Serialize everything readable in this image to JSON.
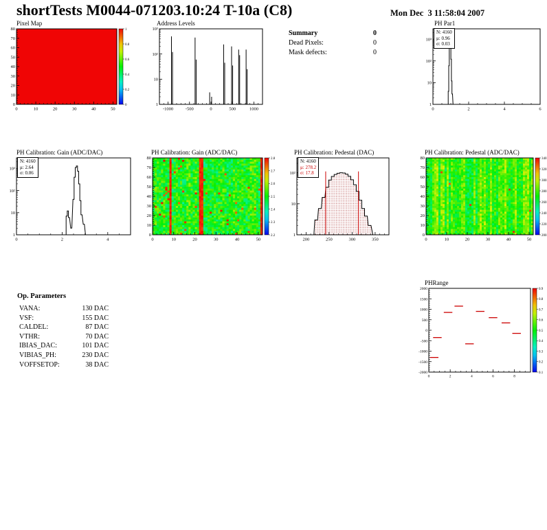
{
  "header": {
    "title": "shortTests M0044-071203.10:24 T-10a (C8)",
    "datetime": "Mon Dec  3 11:58:04 2007"
  },
  "summary": {
    "title": "Summary",
    "value": "0",
    "rows": [
      {
        "label": "Dead Pixels:",
        "value": "0"
      },
      {
        "label": "Mask defects:",
        "value": "0"
      }
    ]
  },
  "op_parameters": {
    "title": "Op. Parameters",
    "rows": [
      {
        "label": "VANA:",
        "value": "130 DAC"
      },
      {
        "label": "VSF:",
        "value": "155 DAC"
      },
      {
        "label": "CALDEL:",
        "value": "87 DAC"
      },
      {
        "label": "VTHR:",
        "value": "70 DAC"
      },
      {
        "label": "IBIAS_DAC:",
        "value": "101 DAC"
      },
      {
        "label": "VIBIAS_PH:",
        "value": "230 DAC"
      },
      {
        "label": "VOFFSETOP:",
        "value": "38 DAC"
      }
    ]
  },
  "colors": {
    "accent_red": "#cc0000",
    "hist_line": "#000000"
  },
  "chart_data": [
    {
      "id": "pixel-map",
      "type": "heatmap",
      "title": "Pixel Map",
      "x": {
        "min": 0,
        "max": 52,
        "ticks": [
          0,
          10,
          20,
          30,
          40,
          50
        ],
        "minor": 2
      },
      "y": {
        "type": "linear",
        "min": 0,
        "max": 80,
        "ticks": [
          0,
          10,
          20,
          30,
          40,
          50,
          60,
          70,
          80
        ],
        "minor": 2
      },
      "heat": {
        "mode": "uniform",
        "value": 1
      },
      "colorbar": {
        "labels": [
          "1",
          "0.8",
          "0.6",
          "0.4",
          "0.2",
          "0"
        ]
      }
    },
    {
      "id": "address-levels",
      "type": "spikes",
      "title": "Address Levels",
      "x": {
        "min": -1200,
        "max": 1200,
        "ticks": [
          -1000,
          -500,
          0,
          500,
          1000
        ],
        "minor": 100
      },
      "y": {
        "type": "log",
        "min": 1,
        "max": 1000,
        "labels": [
          {
            "v": 1,
            "t": "1"
          },
          {
            "v": 10,
            "t": "10"
          },
          {
            "v": 100,
            "t": "10²"
          },
          {
            "v": 1000,
            "t": "10³"
          }
        ]
      },
      "spikes": [
        [
          -920,
          500
        ],
        [
          -895,
          120
        ],
        [
          -370,
          450
        ],
        [
          -345,
          60
        ],
        [
          -30,
          3
        ],
        [
          15,
          2
        ],
        [
          295,
          240
        ],
        [
          320,
          45
        ],
        [
          480,
          200
        ],
        [
          505,
          35
        ],
        [
          645,
          150
        ],
        [
          668,
          90
        ],
        [
          818,
          150
        ],
        [
          842,
          25
        ]
      ]
    },
    {
      "id": "ph-par1",
      "type": "hist",
      "title": "PH Par1",
      "stats": {
        "lines": [
          {
            "text": "N: 4160",
            "color": "#000000"
          },
          {
            "text": "μ: 0.96",
            "color": "#000000"
          },
          {
            "text": "σ: 0.03",
            "color": "#000000"
          }
        ]
      },
      "x": {
        "min": 0,
        "max": 6,
        "ticks": [
          0,
          2,
          4,
          6
        ],
        "minor": 0.5
      },
      "y": {
        "type": "log",
        "min": 1,
        "max": 3000,
        "labels": [
          {
            "v": 1,
            "t": "1"
          },
          {
            "v": 10,
            "t": "10"
          },
          {
            "v": 100,
            "t": "10²"
          },
          {
            "v": 1000,
            "t": "10³"
          }
        ]
      },
      "bin_width": 0.03,
      "points": [
        [
          0.84,
          1
        ],
        [
          0.87,
          4
        ],
        [
          0.9,
          60
        ],
        [
          0.93,
          700
        ],
        [
          0.96,
          2200
        ],
        [
          0.99,
          900
        ],
        [
          1.02,
          120
        ],
        [
          1.05,
          12
        ],
        [
          1.08,
          3
        ],
        [
          1.14,
          1
        ]
      ]
    },
    {
      "id": "gain-hist",
      "type": "hist",
      "title": "PH Calibration: Gain (ADC/DAC)",
      "stats": {
        "lines": [
          {
            "text": "N: 4160",
            "color": "#000000"
          },
          {
            "text": "μ: 2.64",
            "color": "#000000"
          },
          {
            "text": "σ: 0.06",
            "color": "#000000"
          }
        ]
      },
      "x": {
        "min": 0,
        "max": 5,
        "ticks": [
          0,
          2,
          4
        ],
        "minor": 0.5
      },
      "y": {
        "type": "log",
        "min": 1,
        "max": 3000,
        "labels": [
          {
            "v": 1,
            "t": "1"
          },
          {
            "v": 10,
            "t": "10"
          },
          {
            "v": 100,
            "t": "10²"
          },
          {
            "v": 1000,
            "t": "10³"
          }
        ]
      },
      "bin_width": 0.05,
      "points": [
        [
          2.15,
          1
        ],
        [
          2.2,
          7
        ],
        [
          2.25,
          12
        ],
        [
          2.3,
          6
        ],
        [
          2.4,
          2
        ],
        [
          2.5,
          40
        ],
        [
          2.55,
          400
        ],
        [
          2.6,
          1100
        ],
        [
          2.65,
          1300
        ],
        [
          2.7,
          750
        ],
        [
          2.75,
          200
        ],
        [
          2.8,
          35
        ],
        [
          2.85,
          8
        ],
        [
          2.95,
          3
        ],
        [
          3.05,
          1
        ]
      ]
    },
    {
      "id": "gain-map",
      "type": "heatmap",
      "title": "PH Calibration: Gain (ADC/DAC)",
      "x": {
        "min": 0,
        "max": 52,
        "ticks": [
          0,
          10,
          20,
          30,
          40,
          50
        ],
        "minor": 2
      },
      "y": {
        "type": "linear",
        "min": 0,
        "max": 80,
        "ticks": [
          0,
          10,
          20,
          30,
          40,
          50,
          60,
          70,
          80
        ],
        "minor": 2
      },
      "heat": {
        "mode": "noise",
        "seed": 11,
        "base": 0.5,
        "jitter": 0.13,
        "col_wave": 0.05,
        "red_cols": [
          8,
          22,
          23,
          51
        ],
        "hot_fraction": 0.02
      },
      "colorbar": {
        "labels": [
          "2.8",
          "2.7",
          "2.6",
          "2.5",
          "2.4",
          "2.3",
          "2.2"
        ]
      }
    },
    {
      "id": "pedestal-hist",
      "type": "hist",
      "title": "PH Calibration: Pedestal (DAC)",
      "stats": {
        "lines": [
          {
            "text": "N: 4160",
            "color": "#000000"
          },
          {
            "text": "μ: 278.2",
            "color": "#cc0000"
          },
          {
            "text": "σ: 17.8",
            "color": "#cc0000"
          }
        ]
      },
      "x": {
        "min": 180,
        "max": 380,
        "ticks": [
          200,
          250,
          300,
          350
        ],
        "minor": 10
      },
      "y": {
        "type": "log",
        "min": 1,
        "max": 300,
        "labels": [
          {
            "v": 1,
            "t": "1"
          },
          {
            "v": 10,
            "t": "10"
          },
          {
            "v": 100,
            "t": "10²"
          }
        ]
      },
      "bin_width": 6,
      "fill": "dots",
      "vlines": [
        {
          "x": 242.6,
          "h": 110,
          "color": "#cc0000"
        },
        {
          "x": 313.8,
          "h": 110,
          "color": "#cc0000"
        }
      ],
      "points": [
        [
          206,
          1
        ],
        [
          214,
          1
        ],
        [
          222,
          3
        ],
        [
          230,
          7
        ],
        [
          238,
          16
        ],
        [
          246,
          34
        ],
        [
          252,
          58
        ],
        [
          258,
          76
        ],
        [
          264,
          88
        ],
        [
          270,
          96
        ],
        [
          276,
          100
        ],
        [
          282,
          98
        ],
        [
          288,
          90
        ],
        [
          294,
          77
        ],
        [
          300,
          59
        ],
        [
          306,
          41
        ],
        [
          312,
          25
        ],
        [
          318,
          13
        ],
        [
          324,
          7
        ],
        [
          330,
          4
        ],
        [
          338,
          2
        ],
        [
          348,
          1
        ]
      ]
    },
    {
      "id": "pedestal-map",
      "type": "heatmap",
      "title": "PH Calibration: Pedestal (ADC/DAC)",
      "x": {
        "min": 0,
        "max": 52,
        "ticks": [
          0,
          10,
          20,
          30,
          40,
          50
        ],
        "minor": 2
      },
      "y": {
        "type": "linear",
        "min": 0,
        "max": 80,
        "ticks": [
          0,
          10,
          20,
          30,
          40,
          50,
          60,
          70,
          80
        ],
        "minor": 2
      },
      "heat": {
        "mode": "noise",
        "seed": 23,
        "base": 0.55,
        "jitter": 0.09,
        "col_wave": 0.1,
        "red_cols": [],
        "hot_fraction": 0.004
      },
      "colorbar": {
        "labels": [
          "340",
          "320",
          "300",
          "280",
          "260",
          "240",
          "220",
          "200"
        ]
      }
    },
    {
      "id": "ph-range",
      "type": "segments",
      "title": "PHRange",
      "x": {
        "min": 0,
        "max": 9.5,
        "ticks": [
          0,
          2,
          4,
          6,
          8
        ],
        "minor": 0.5
      },
      "y": {
        "type": "linear",
        "min": -2000,
        "max": 2000,
        "ticks": [
          2000,
          1500,
          1000,
          500,
          0,
          -500,
          -1000,
          -1500,
          -2000
        ],
        "minor": 100
      },
      "color": "#cc0000",
      "segments": [
        [
          0.1,
          0.9,
          -1300
        ],
        [
          0.4,
          1.2,
          -350
        ],
        [
          1.4,
          2.2,
          850
        ],
        [
          2.4,
          3.2,
          1150
        ],
        [
          3.4,
          4.2,
          -650
        ],
        [
          4.4,
          5.2,
          900
        ],
        [
          5.6,
          6.4,
          600
        ],
        [
          6.8,
          7.6,
          350
        ],
        [
          7.8,
          8.6,
          -150
        ]
      ],
      "colorbar": {
        "labels": [
          "0.9",
          "0.8",
          "0.7",
          "0.6",
          "0.5",
          "0.4",
          "0.3",
          "0.2",
          "0.1"
        ]
      }
    }
  ]
}
